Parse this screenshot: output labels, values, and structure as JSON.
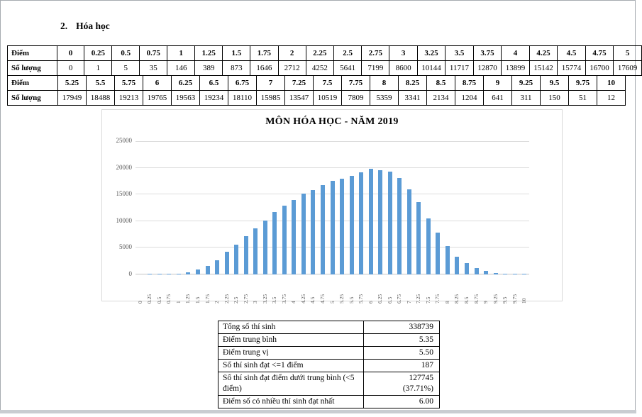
{
  "page": {
    "heading_number": "2.",
    "heading_text": "Hóa học"
  },
  "score_tables": {
    "row_label_score": "Điểm",
    "row_label_count": "Số lượng",
    "table1": {
      "scores": [
        "0",
        "0.25",
        "0.5",
        "0.75",
        "1",
        "1.25",
        "1.5",
        "1.75",
        "2",
        "2.25",
        "2.5",
        "2.75",
        "3",
        "3.25",
        "3.5",
        "3.75",
        "4",
        "4.25",
        "4.5",
        "4.75",
        "5"
      ],
      "counts": [
        "0",
        "1",
        "5",
        "35",
        "146",
        "389",
        "873",
        "1646",
        "2712",
        "4252",
        "5641",
        "7199",
        "8600",
        "10144",
        "11717",
        "12870",
        "13899",
        "15142",
        "15774",
        "16700",
        "17609"
      ]
    },
    "table2": {
      "scores": [
        "5.25",
        "5.5",
        "5.75",
        "6",
        "6.25",
        "6.5",
        "6.75",
        "7",
        "7.25",
        "7.5",
        "7.75",
        "8",
        "8.25",
        "8.5",
        "8.75",
        "9",
        "9.25",
        "9.5",
        "9.75",
        "10"
      ],
      "counts": [
        "17949",
        "18488",
        "19213",
        "19765",
        "19563",
        "19234",
        "18110",
        "15985",
        "13547",
        "10519",
        "7809",
        "5359",
        "3341",
        "2134",
        "1204",
        "641",
        "311",
        "150",
        "51",
        "12"
      ]
    }
  },
  "chart_data": {
    "type": "bar",
    "title": "MÔN HÓA HỌC - NĂM 2019",
    "categories": [
      "0",
      "0.25",
      "0.5",
      "0.75",
      "1",
      "1.25",
      "1.5",
      "1.75",
      "2",
      "2.25",
      "2.5",
      "2.75",
      "3",
      "3.25",
      "3.5",
      "3.75",
      "4",
      "4.25",
      "4.5",
      "4.75",
      "5",
      "5.25",
      "5.5",
      "5.75",
      "6",
      "6.25",
      "6.5",
      "6.75",
      "7",
      "7.25",
      "7.5",
      "7.75",
      "8",
      "8.25",
      "8.5",
      "8.75",
      "9",
      "9.25",
      "9.5",
      "9.75",
      "10"
    ],
    "values": [
      0,
      1,
      5,
      35,
      146,
      389,
      873,
      1646,
      2712,
      4252,
      5641,
      7199,
      8600,
      10144,
      11717,
      12870,
      13899,
      15142,
      15774,
      16700,
      17609,
      17949,
      18488,
      19213,
      19765,
      19563,
      19234,
      18110,
      15985,
      13547,
      10519,
      7809,
      5359,
      3341,
      2134,
      1204,
      641,
      311,
      150,
      51,
      12
    ],
    "xlabel": "",
    "ylabel": "",
    "ylim": [
      0,
      25000
    ],
    "ytick_step": 5000,
    "grid": true,
    "legend": "none",
    "bar_color": "#5B9BD5",
    "gridline_color": "#dcdcdc",
    "axis_text_color": "#595959"
  },
  "summary_table": {
    "rows": [
      {
        "label": "Tổng số thí sinh",
        "value": "338739"
      },
      {
        "label": "Điểm trung bình",
        "value": "5.35"
      },
      {
        "label": "Điểm trung vị",
        "value": "5.50"
      },
      {
        "label": "Số thí sinh đạt <=1 điểm",
        "value": "187"
      },
      {
        "label": "Số thí sinh đạt điểm dưới trung bình (<5 điểm)",
        "value": "127745\n(37.71%)"
      },
      {
        "label": "Điểm số có nhiều thí sinh đạt nhất",
        "value": "6.00"
      }
    ]
  }
}
